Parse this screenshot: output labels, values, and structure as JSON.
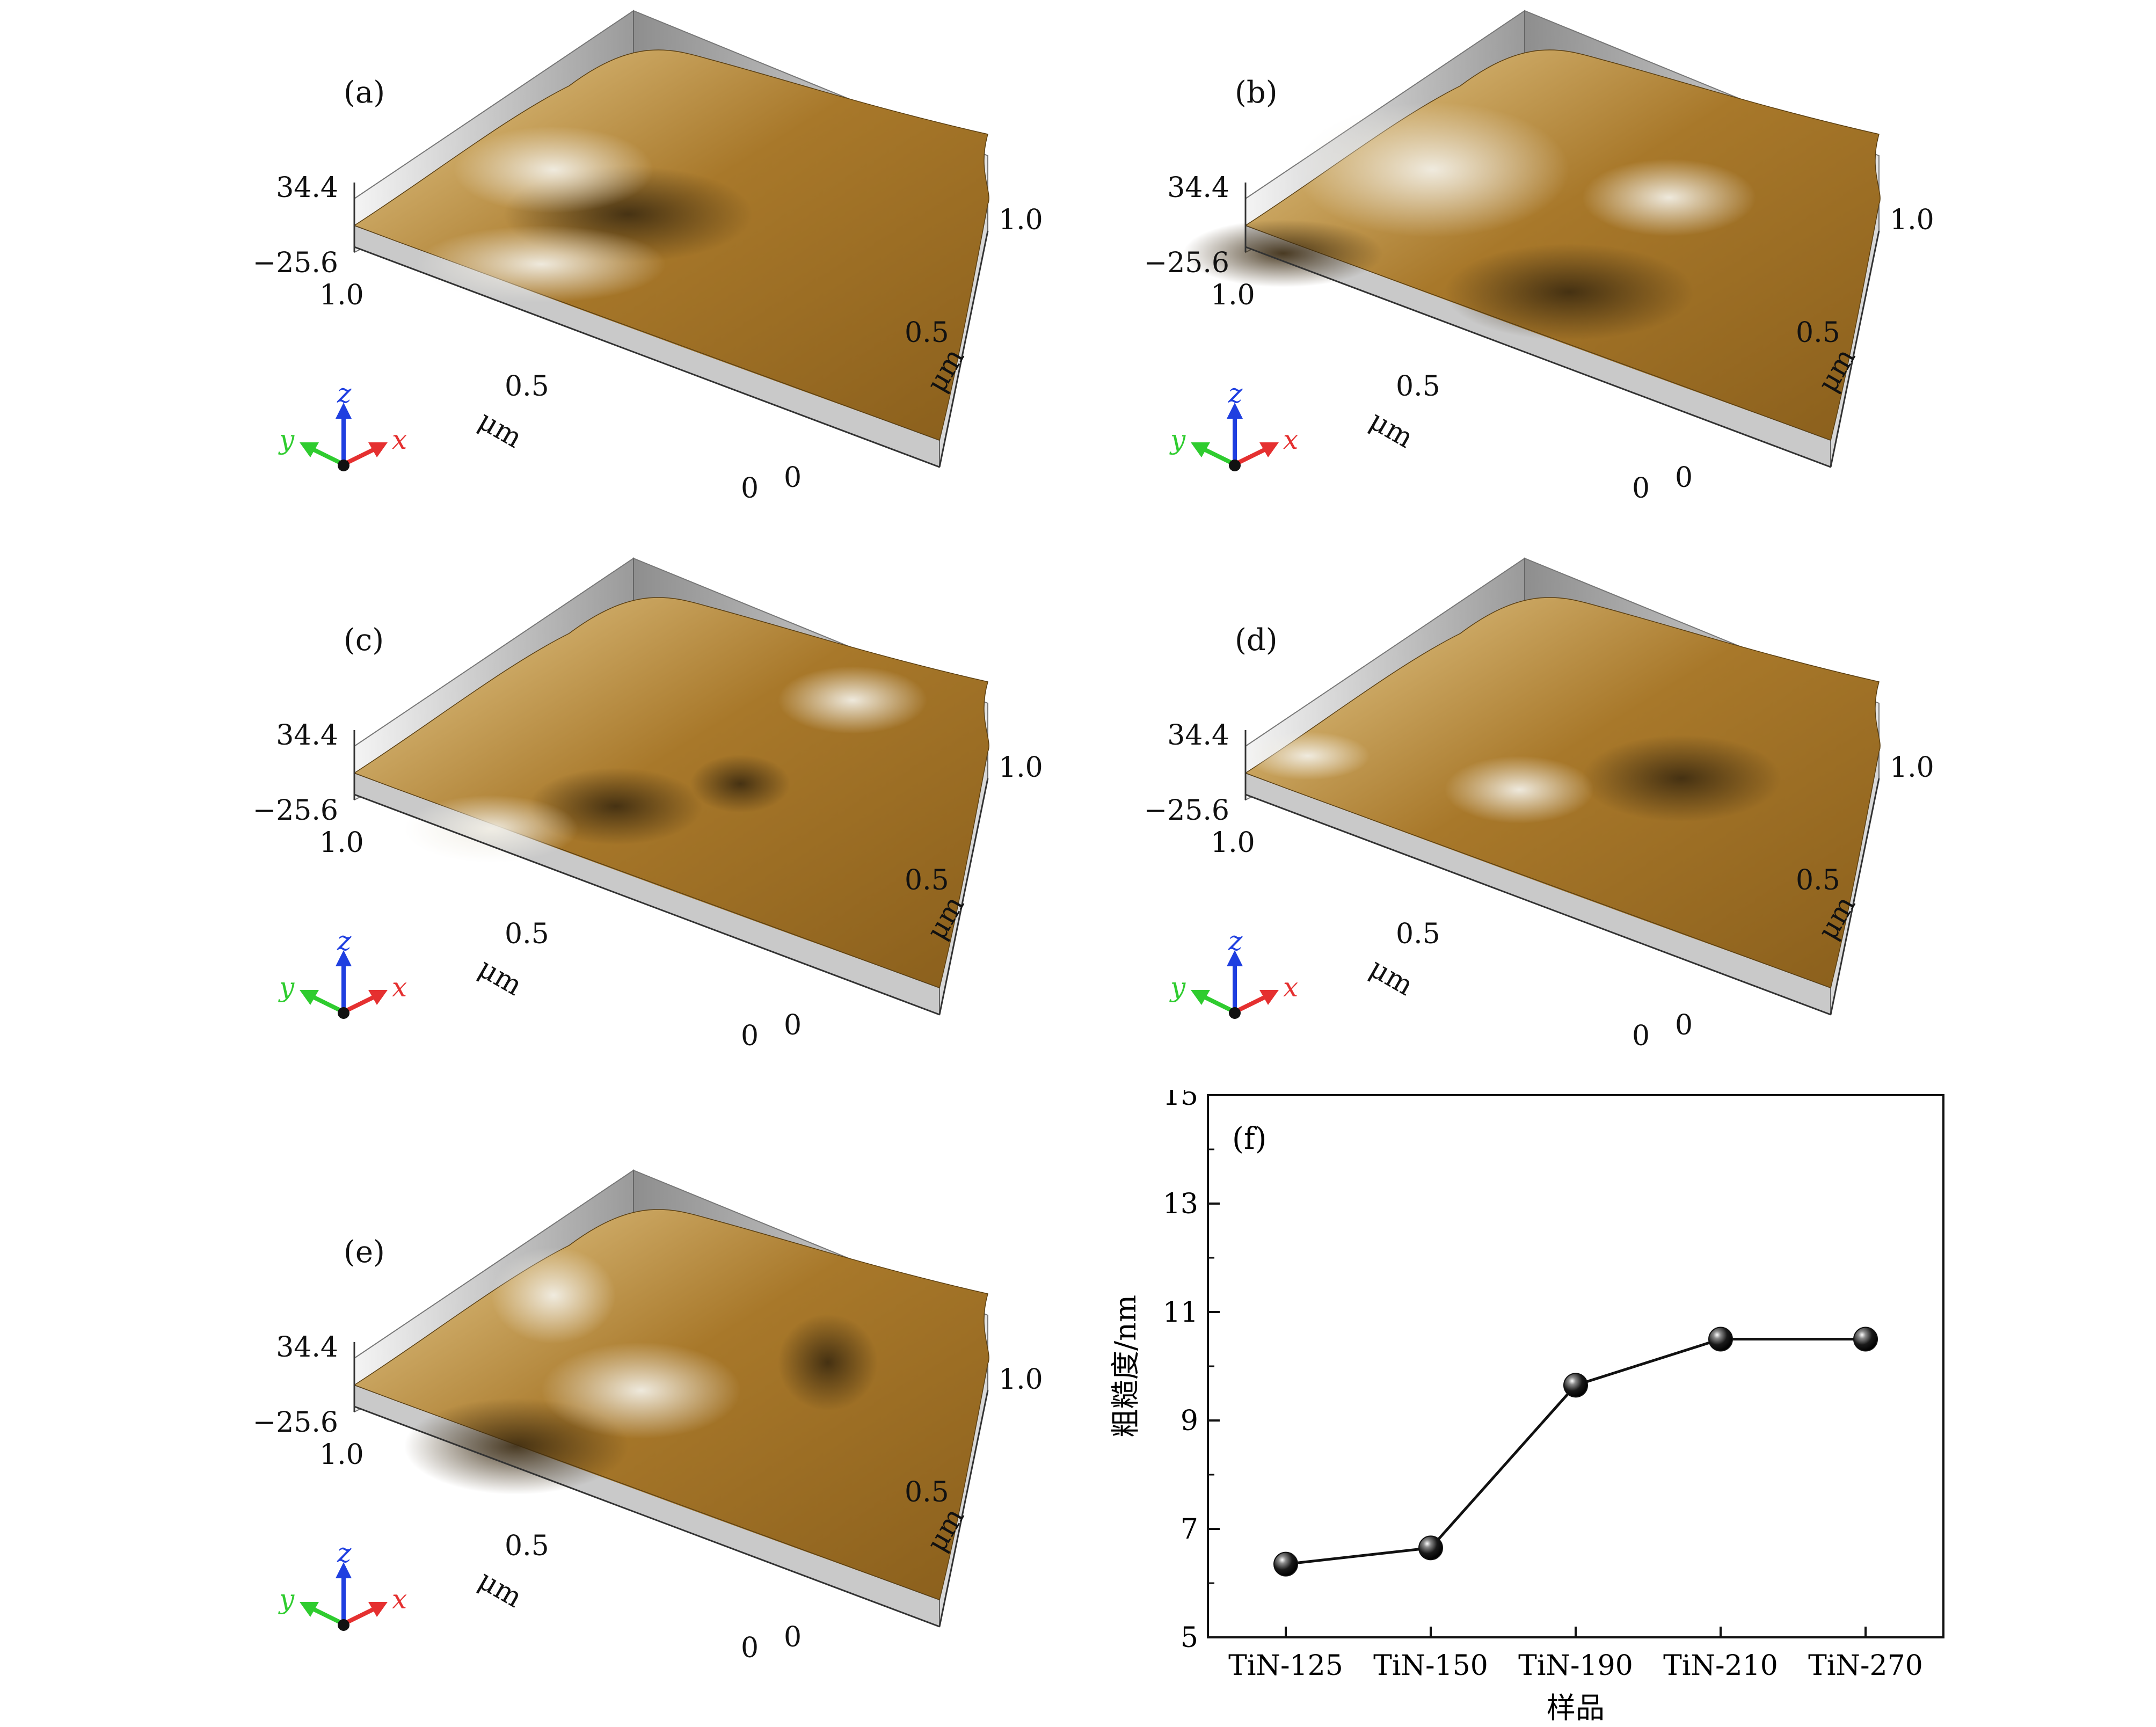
{
  "afm_panels": [
    {
      "id": "a",
      "label": "(a)",
      "z_max": "34.4",
      "z_min": "−25.6",
      "left_top": "1.0",
      "left_mid": "0.5",
      "left_zero": "0",
      "right_zero": "0",
      "right_mid": "0.5",
      "right_top": "1.0",
      "unit_left": "μm",
      "unit_right": "μm"
    },
    {
      "id": "b",
      "label": "(b)",
      "z_max": "34.4",
      "z_min": "−25.6",
      "left_top": "1.0",
      "left_mid": "0.5",
      "left_zero": "0",
      "right_zero": "0",
      "right_mid": "0.5",
      "right_top": "1.0",
      "unit_left": "μm",
      "unit_right": "μm"
    },
    {
      "id": "c",
      "label": "(c)",
      "z_max": "34.4",
      "z_min": "−25.6",
      "left_top": "1.0",
      "left_mid": "0.5",
      "left_zero": "0",
      "right_zero": "0",
      "right_mid": "0.5",
      "right_top": "1.0",
      "unit_left": "μm",
      "unit_right": "μm"
    },
    {
      "id": "d",
      "label": "(d)",
      "z_max": "34.4",
      "z_min": "−25.6",
      "left_top": "1.0",
      "left_mid": "0.5",
      "left_zero": "0",
      "right_zero": "0",
      "right_mid": "0.5",
      "right_top": "1.0",
      "unit_left": "μm",
      "unit_right": "μm"
    },
    {
      "id": "e",
      "label": "(e)",
      "z_max": "34.4",
      "z_min": "−25.6",
      "left_top": "1.0",
      "left_mid": "0.5",
      "left_zero": "0",
      "right_zero": "0",
      "right_mid": "0.5",
      "right_top": "1.0",
      "unit_left": "μm",
      "unit_right": "μm"
    }
  ],
  "axis_triad": {
    "x": "x",
    "y": "y",
    "z": "z",
    "colors": {
      "x": "#e53030",
      "y": "#2fcc2f",
      "z": "#1f3fe0"
    }
  },
  "surface_colors": {
    "base": "#a8782a",
    "light": "#e9cf93",
    "dark": "#3b2a10",
    "highlight": "#f2efe6",
    "wall": "#bdbdbd"
  },
  "chart_data": {
    "type": "line",
    "panel_label": "(f)",
    "categories": [
      "TiN-125",
      "TiN-150",
      "TiN-190",
      "TiN-210",
      "TiN-270"
    ],
    "values": [
      6.35,
      6.65,
      9.65,
      10.5,
      10.5
    ],
    "xlabel": "样品",
    "ylabel": "粗糙度/nm",
    "ylim": [
      5,
      15
    ],
    "yticks": [
      "5",
      "7",
      "9",
      "11",
      "13",
      "15"
    ],
    "grid": false,
    "marker": "sphere",
    "marker_color": "#111111"
  }
}
